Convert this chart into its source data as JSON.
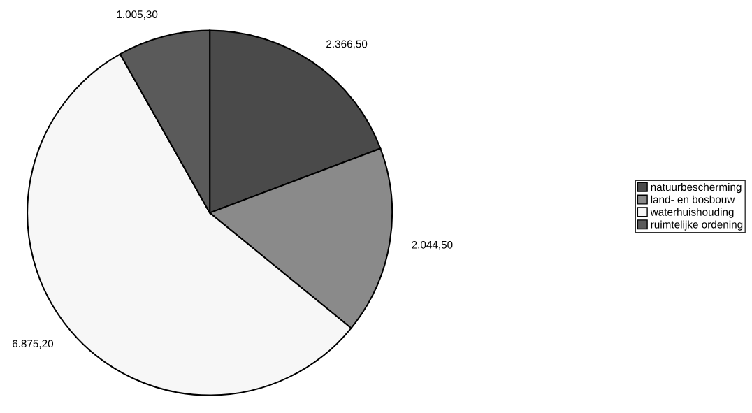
{
  "chart_data": {
    "type": "pie",
    "categories": [
      "natuurbescherming",
      "land- en bosbouw",
      "waterhuishouding",
      "ruimtelijke ordening"
    ],
    "values": [
      2366.5,
      2044.5,
      6875.2,
      1005.3
    ],
    "value_labels": [
      "2.366,50",
      "2.044,50",
      "6.875,20",
      "1.005,30"
    ],
    "colors": [
      "#4a4a4a",
      "#8a8a8a",
      "#f7f7f7",
      "#5a5a5a"
    ],
    "legend": "right"
  }
}
